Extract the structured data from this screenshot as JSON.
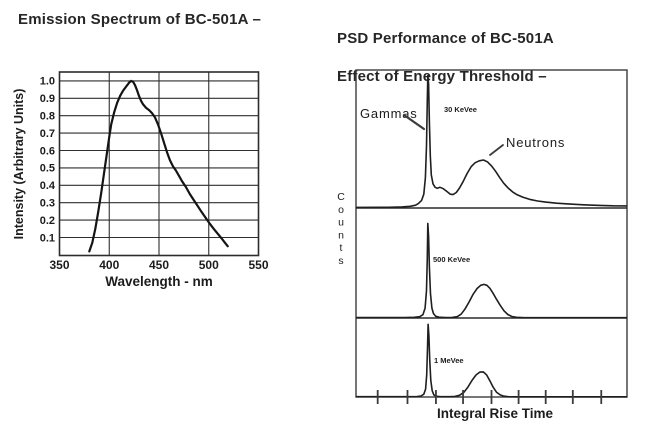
{
  "left_panel": {
    "title": "Emission Spectrum of BC-501A –"
  },
  "right_panel": {
    "title_line1": "PSD Performance of BC-501A",
    "title_line2": "Effect of Energy Threshold –"
  },
  "chart_data": [
    {
      "id": "emission-spectrum",
      "type": "line",
      "title": "Emission Spectrum of BC-501A",
      "xlabel": "Wavelength - nm",
      "ylabel": "Intensity (Arbitrary Units)",
      "xlim": [
        350,
        550
      ],
      "ylim": [
        0,
        1.05
      ],
      "x_ticks": [
        350,
        400,
        450,
        500,
        550
      ],
      "x_gridlines": [
        400,
        450,
        500
      ],
      "y_ticks": [
        0.1,
        0.2,
        0.3,
        0.4,
        0.5,
        0.6,
        0.7,
        0.8,
        0.9,
        1.0
      ],
      "grid": true,
      "line_color": "#141414",
      "points": [
        [
          380,
          0.02
        ],
        [
          383,
          0.07
        ],
        [
          386,
          0.15
        ],
        [
          389,
          0.25
        ],
        [
          392,
          0.36
        ],
        [
          395,
          0.48
        ],
        [
          398,
          0.6
        ],
        [
          400,
          0.68
        ],
        [
          402,
          0.75
        ],
        [
          405,
          0.82
        ],
        [
          408,
          0.875
        ],
        [
          411,
          0.915
        ],
        [
          414,
          0.945
        ],
        [
          417,
          0.968
        ],
        [
          420,
          0.99
        ],
        [
          422,
          1.0
        ],
        [
          424,
          0.995
        ],
        [
          426,
          0.975
        ],
        [
          428,
          0.945
        ],
        [
          430,
          0.912
        ],
        [
          432,
          0.885
        ],
        [
          434,
          0.865
        ],
        [
          437,
          0.845
        ],
        [
          440,
          0.832
        ],
        [
          443,
          0.815
        ],
        [
          446,
          0.79
        ],
        [
          449,
          0.75
        ],
        [
          452,
          0.7
        ],
        [
          455,
          0.645
        ],
        [
          458,
          0.59
        ],
        [
          461,
          0.545
        ],
        [
          464,
          0.51
        ],
        [
          467,
          0.485
        ],
        [
          470,
          0.455
        ],
        [
          473,
          0.425
        ],
        [
          477,
          0.39
        ],
        [
          481,
          0.35
        ],
        [
          485,
          0.315
        ],
        [
          489,
          0.28
        ],
        [
          493,
          0.245
        ],
        [
          497,
          0.212
        ],
        [
          501,
          0.18
        ],
        [
          505,
          0.15
        ],
        [
          509,
          0.122
        ],
        [
          513,
          0.094
        ],
        [
          516,
          0.072
        ],
        [
          519,
          0.05
        ]
      ]
    },
    {
      "id": "psd-performance",
      "type": "line",
      "title": "PSD Performance of BC-501A — Effect of Energy Threshold",
      "xlabel": "Integral Rise Time",
      "ylabel": "Counts",
      "x_axis_note": "unlabeled axis, arbitrary units 0–10 with 9 tick marks",
      "y_axis_note": "counts, unlabeled linear scale, normalized 0–1 per panel",
      "x_ticks": [
        0.8,
        1.9,
        2.95,
        3.95,
        5.0,
        6.0,
        7.0,
        8.0,
        9.05
      ],
      "annotations": {
        "gammas": "Gammas",
        "neutrons": "Neutrons"
      },
      "line_color": "#1f1f1f",
      "panels": [
        {
          "label": "30 KeVee",
          "points": [
            [
              0,
              0.004
            ],
            [
              1.2,
              0.005
            ],
            [
              1.7,
              0.008
            ],
            [
              2.0,
              0.012
            ],
            [
              2.2,
              0.02
            ],
            [
              2.3,
              0.032
            ],
            [
              2.42,
              0.055
            ],
            [
              2.5,
              0.1
            ],
            [
              2.56,
              0.22
            ],
            [
              2.6,
              0.45
            ],
            [
              2.63,
              0.78
            ],
            [
              2.65,
              0.96
            ],
            [
              2.68,
              0.9
            ],
            [
              2.71,
              0.62
            ],
            [
              2.74,
              0.38
            ],
            [
              2.78,
              0.24
            ],
            [
              2.84,
              0.175
            ],
            [
              2.92,
              0.15
            ],
            [
              3.0,
              0.143
            ],
            [
              3.1,
              0.15
            ],
            [
              3.22,
              0.14
            ],
            [
              3.35,
              0.12
            ],
            [
              3.48,
              0.1
            ],
            [
              3.58,
              0.097
            ],
            [
              3.7,
              0.112
            ],
            [
              3.82,
              0.145
            ],
            [
              3.95,
              0.19
            ],
            [
              4.1,
              0.25
            ],
            [
              4.25,
              0.3
            ],
            [
              4.4,
              0.328
            ],
            [
              4.55,
              0.342
            ],
            [
              4.7,
              0.348
            ],
            [
              4.85,
              0.335
            ],
            [
              5.0,
              0.305
            ],
            [
              5.15,
              0.266
            ],
            [
              5.3,
              0.222
            ],
            [
              5.45,
              0.18
            ],
            [
              5.6,
              0.147
            ],
            [
              5.78,
              0.117
            ],
            [
              5.95,
              0.096
            ],
            [
              6.15,
              0.079
            ],
            [
              6.4,
              0.063
            ],
            [
              6.7,
              0.051
            ],
            [
              7.0,
              0.043
            ],
            [
              7.4,
              0.035
            ],
            [
              7.9,
              0.028
            ],
            [
              8.4,
              0.023
            ],
            [
              9.0,
              0.019
            ],
            [
              9.5,
              0.016
            ],
            [
              10,
              0.015
            ]
          ]
        },
        {
          "label": "500 KeVee",
          "points": [
            [
              0,
              0.004
            ],
            [
              1.8,
              0.004
            ],
            [
              2.15,
              0.006
            ],
            [
              2.35,
              0.012
            ],
            [
              2.47,
              0.03
            ],
            [
              2.55,
              0.09
            ],
            [
              2.6,
              0.25
            ],
            [
              2.63,
              0.55
            ],
            [
              2.65,
              0.86
            ],
            [
              2.68,
              0.74
            ],
            [
              2.71,
              0.46
            ],
            [
              2.75,
              0.22
            ],
            [
              2.8,
              0.09
            ],
            [
              2.86,
              0.04
            ],
            [
              2.94,
              0.015
            ],
            [
              3.06,
              0.007
            ],
            [
              3.3,
              0.004
            ],
            [
              3.55,
              0.005
            ],
            [
              3.73,
              0.012
            ],
            [
              3.88,
              0.035
            ],
            [
              4.02,
              0.08
            ],
            [
              4.17,
              0.145
            ],
            [
              4.32,
              0.215
            ],
            [
              4.47,
              0.268
            ],
            [
              4.6,
              0.297
            ],
            [
              4.72,
              0.305
            ],
            [
              4.83,
              0.297
            ],
            [
              4.94,
              0.27
            ],
            [
              5.06,
              0.225
            ],
            [
              5.18,
              0.172
            ],
            [
              5.32,
              0.115
            ],
            [
              5.46,
              0.065
            ],
            [
              5.6,
              0.032
            ],
            [
              5.75,
              0.014
            ],
            [
              5.92,
              0.006
            ],
            [
              6.2,
              0.003
            ],
            [
              10,
              0.003
            ]
          ]
        },
        {
          "label": "1 MeVee",
          "points": [
            [
              0,
              0.004
            ],
            [
              2.0,
              0.004
            ],
            [
              2.25,
              0.006
            ],
            [
              2.4,
              0.013
            ],
            [
              2.5,
              0.035
            ],
            [
              2.57,
              0.1
            ],
            [
              2.61,
              0.28
            ],
            [
              2.64,
              0.62
            ],
            [
              2.66,
              0.92
            ],
            [
              2.69,
              0.78
            ],
            [
              2.72,
              0.48
            ],
            [
              2.76,
              0.21
            ],
            [
              2.81,
              0.08
            ],
            [
              2.87,
              0.028
            ],
            [
              2.95,
              0.01
            ],
            [
              3.1,
              0.004
            ],
            [
              3.45,
              0.004
            ],
            [
              3.65,
              0.008
            ],
            [
              3.82,
              0.022
            ],
            [
              3.98,
              0.06
            ],
            [
              4.13,
              0.125
            ],
            [
              4.28,
              0.21
            ],
            [
              4.43,
              0.28
            ],
            [
              4.57,
              0.315
            ],
            [
              4.7,
              0.318
            ],
            [
              4.82,
              0.28
            ],
            [
              4.94,
              0.205
            ],
            [
              5.06,
              0.125
            ],
            [
              5.18,
              0.062
            ],
            [
              5.32,
              0.026
            ],
            [
              5.46,
              0.01
            ],
            [
              5.62,
              0.004
            ],
            [
              6.0,
              0.003
            ],
            [
              10,
              0.003
            ]
          ]
        }
      ]
    }
  ]
}
